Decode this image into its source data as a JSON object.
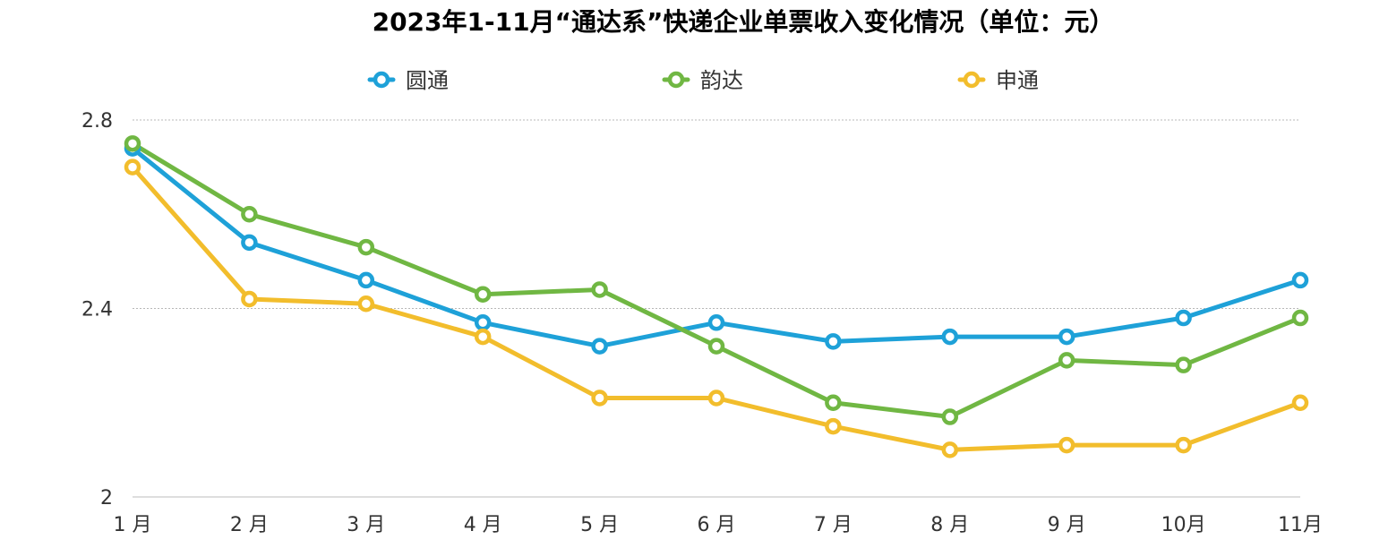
{
  "chart_data": {
    "type": "line",
    "title": "2023年1-11月“通达系”快递企业单票收入变化情况（单位：元）",
    "xlabel": "",
    "ylabel": "",
    "categories": [
      "1 月",
      "2 月",
      "3 月",
      "4 月",
      "5 月",
      "6 月",
      "7 月",
      "8 月",
      "9 月",
      "10月",
      "11月"
    ],
    "y_ticks": [
      "2",
      "2.4",
      "2.8"
    ],
    "ylim": [
      2.0,
      2.8
    ],
    "grid": true,
    "legend_position": "top",
    "series": [
      {
        "name": "圆通",
        "color": "#1ea1d8",
        "values": [
          2.74,
          2.54,
          2.46,
          2.37,
          2.32,
          2.37,
          2.33,
          2.34,
          2.34,
          2.38,
          2.46
        ]
      },
      {
        "name": "韵达",
        "color": "#70b743",
        "values": [
          2.75,
          2.6,
          2.53,
          2.43,
          2.44,
          2.32,
          2.2,
          2.17,
          2.29,
          2.28,
          2.38
        ]
      },
      {
        "name": "申通",
        "color": "#f2bd2c",
        "values": [
          2.7,
          2.42,
          2.41,
          2.34,
          2.21,
          2.21,
          2.15,
          2.1,
          2.11,
          2.11,
          2.2
        ]
      }
    ]
  }
}
